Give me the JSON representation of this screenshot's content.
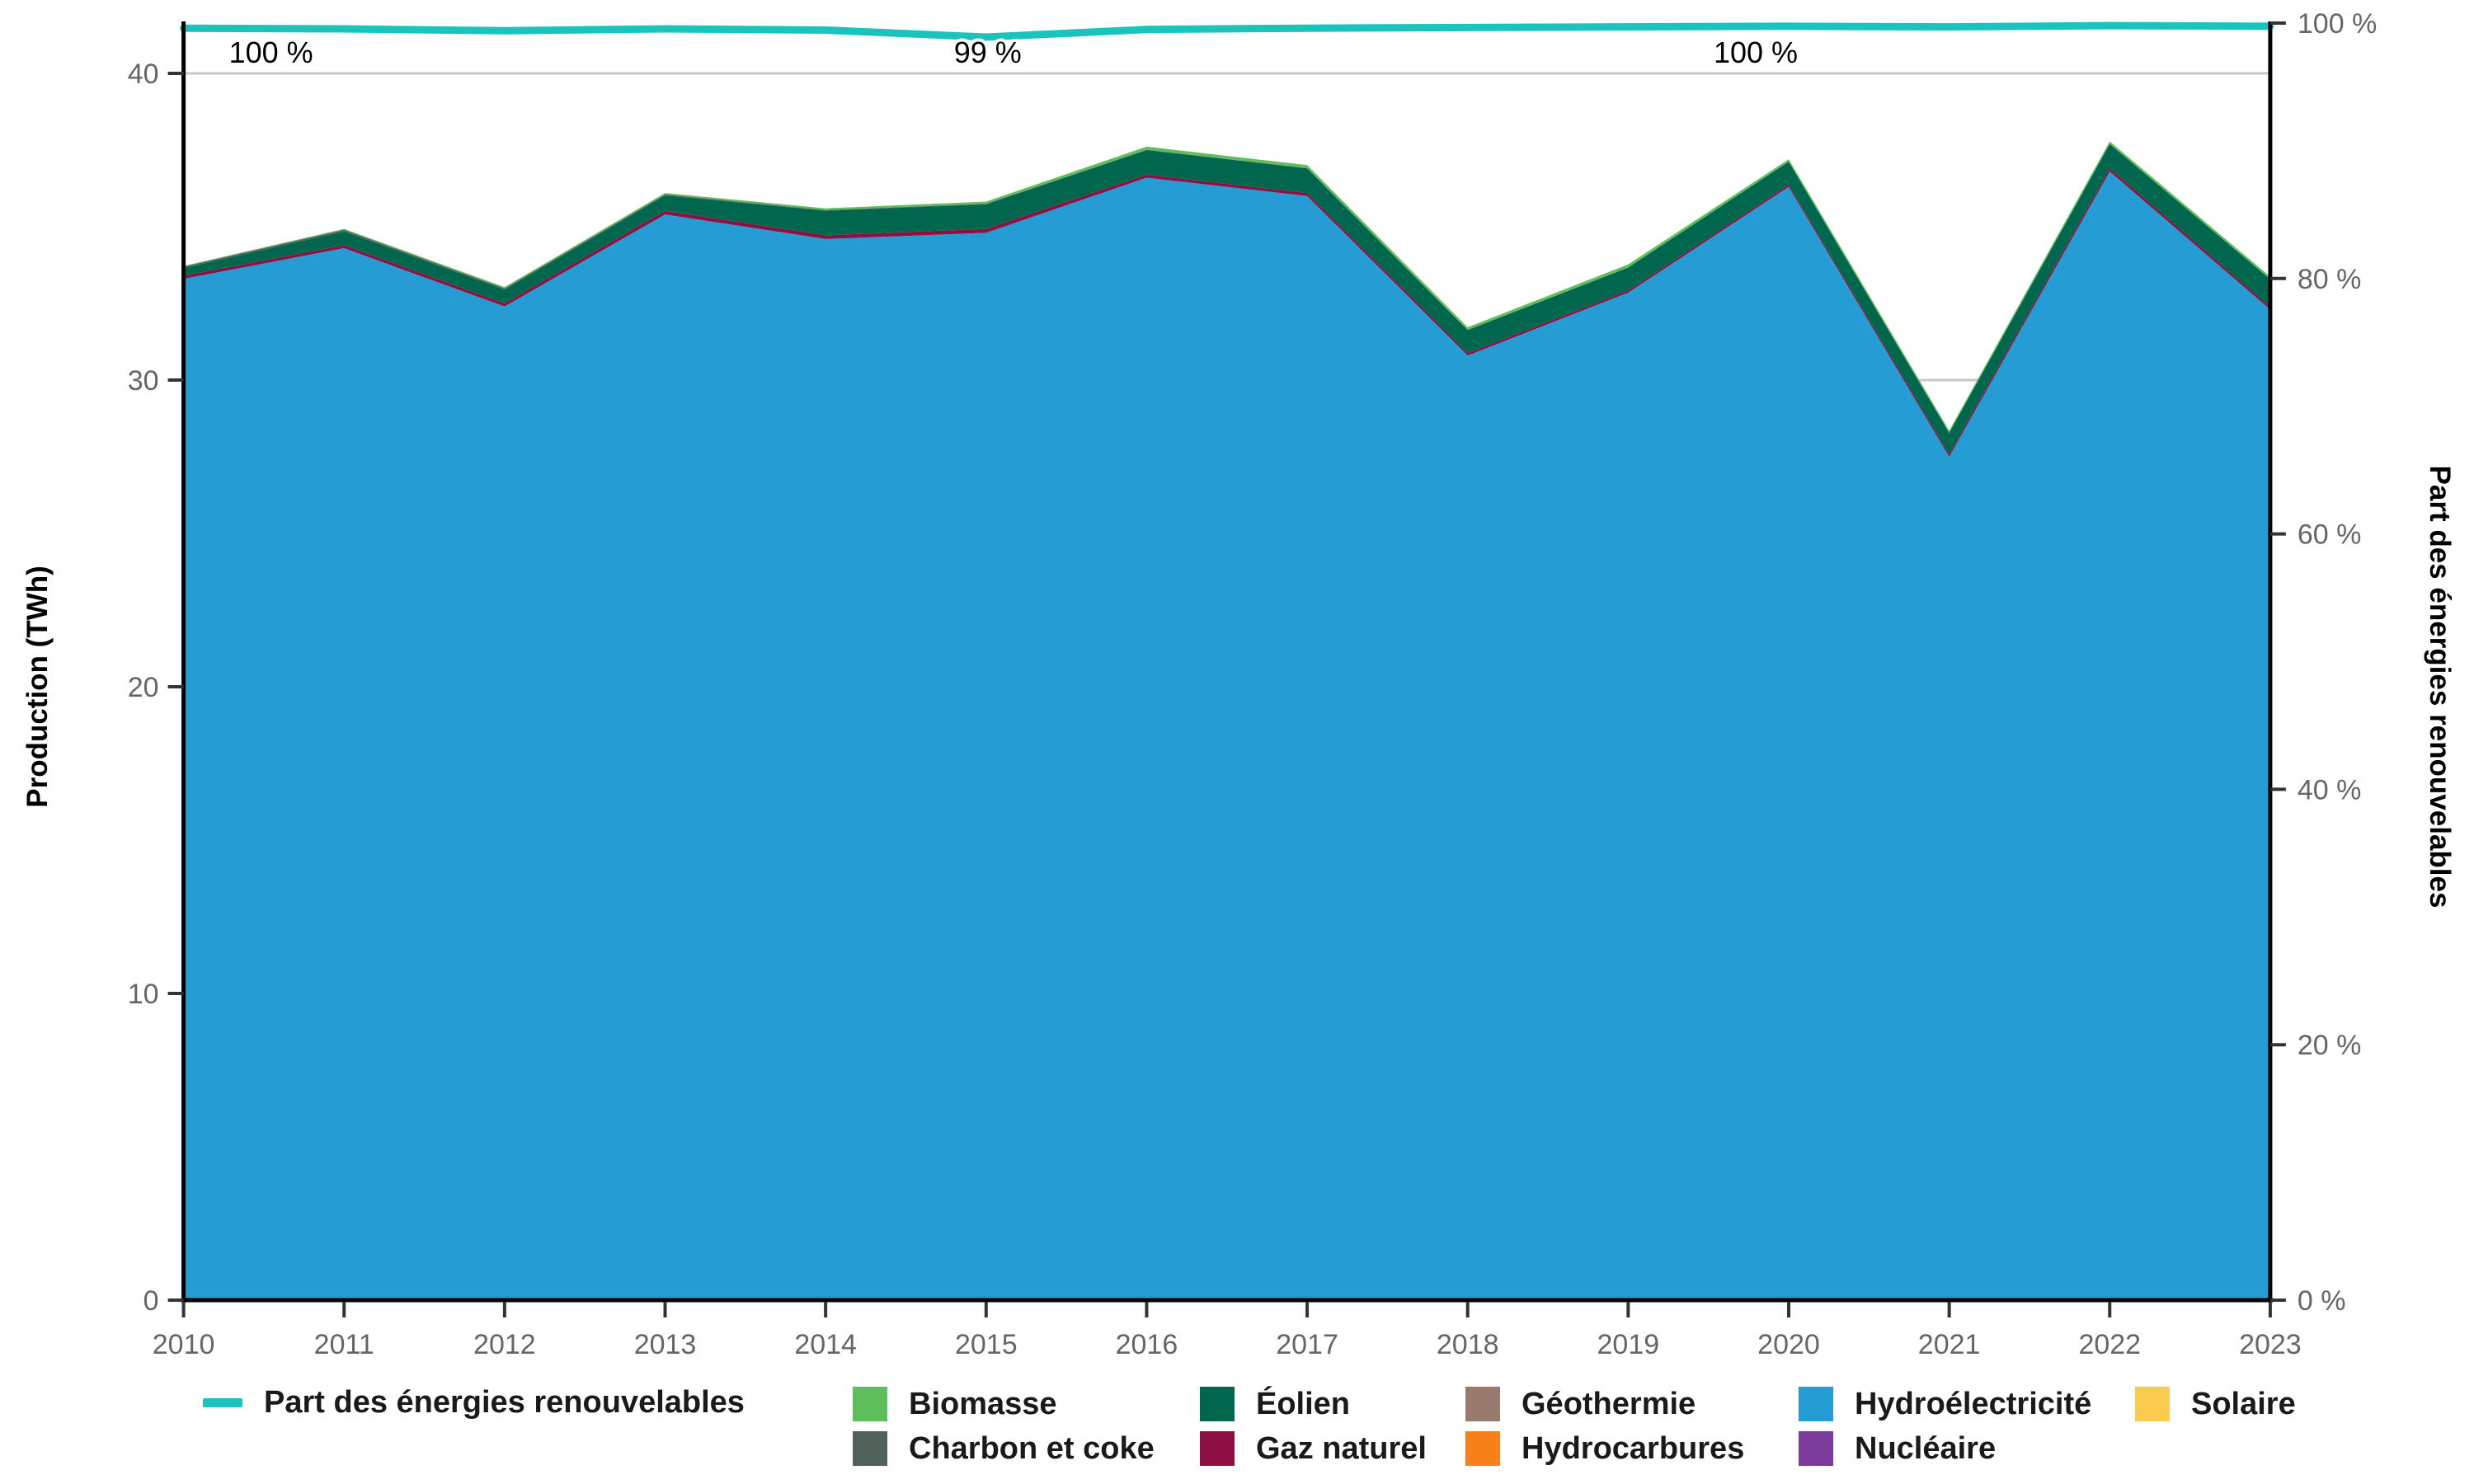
{
  "chart_data": {
    "type": "area",
    "title": "",
    "x": [
      2010,
      2011,
      2012,
      2013,
      2014,
      2015,
      2016,
      2017,
      2018,
      2019,
      2020,
      2021,
      2022,
      2023
    ],
    "x_tick_labels": [
      "2010",
      "2011",
      "2012",
      "2013",
      "2014",
      "2015",
      "2016",
      "2017",
      "2018",
      "2019",
      "2020",
      "2021",
      "2022",
      "2023"
    ],
    "stack_note": "series listed bottom-to-top of the stack, values in TWh",
    "series": [
      {
        "id": "solaire",
        "name": "Solaire",
        "color": "#F9CC4F",
        "values": [
          0,
          0,
          0,
          0,
          0,
          0,
          0,
          0,
          0,
          0,
          0,
          0,
          0,
          0
        ]
      },
      {
        "id": "nucleaire",
        "name": "Nucléaire",
        "color": "#7A3B9B",
        "values": [
          0,
          0,
          0,
          0,
          0,
          0,
          0,
          0,
          0,
          0,
          0,
          0,
          0,
          0
        ]
      },
      {
        "id": "hydro",
        "name": "Hydroélectricité",
        "color": "#259CD3",
        "values": [
          33.3,
          34.3,
          32.4,
          35.4,
          34.6,
          34.8,
          36.6,
          36.0,
          30.8,
          32.85,
          36.3,
          27.5,
          36.8,
          32.3
        ]
      },
      {
        "id": "hydrocarbures",
        "name": "Hydrocarbures",
        "color": "#F8811C",
        "values": [
          0,
          0,
          0,
          0,
          0,
          0,
          0,
          0,
          0,
          0,
          0,
          0,
          0,
          0
        ]
      },
      {
        "id": "geothermie",
        "name": "Géothermie",
        "color": "#9A7A6F",
        "values": [
          0,
          0,
          0,
          0,
          0,
          0,
          0,
          0,
          0,
          0,
          0,
          0,
          0,
          0
        ]
      },
      {
        "id": "gaz",
        "name": "Gaz naturel",
        "color": "#8E1043",
        "values": [
          0.1,
          0.1,
          0.1,
          0.12,
          0.12,
          0.13,
          0.1,
          0.1,
          0.08,
          0.07,
          0.07,
          0.08,
          0.1,
          0.09
        ]
      },
      {
        "id": "eolien",
        "name": "Éolien",
        "color": "#00664E",
        "values": [
          0.25,
          0.45,
          0.45,
          0.5,
          0.8,
          0.8,
          0.8,
          0.8,
          0.75,
          0.75,
          0.75,
          0.7,
          0.8,
          0.9
        ]
      },
      {
        "id": "charbon",
        "name": "Charbon et coke",
        "color": "#51625A",
        "values": [
          0.05,
          0.05,
          0.04,
          0.03,
          0.02,
          0.02,
          0.01,
          0.01,
          0.01,
          0,
          0,
          0,
          0,
          0
        ]
      },
      {
        "id": "biomasse",
        "name": "Biomasse",
        "color": "#5EBE5C",
        "values": [
          0.02,
          0.03,
          0.04,
          0.05,
          0.06,
          0.07,
          0.1,
          0.1,
          0.08,
          0.1,
          0.08,
          0.07,
          0.08,
          0.08
        ]
      }
    ],
    "line_series": {
      "id": "part-renouvelables",
      "name": "Part des énergies renouvelables",
      "color": "#1AC4BD",
      "unit": "%",
      "values": [
        99.6,
        99.55,
        99.4,
        99.55,
        99.45,
        98.9,
        99.5,
        99.6,
        99.65,
        99.7,
        99.75,
        99.7,
        99.8,
        99.75
      ]
    },
    "annotations": [
      {
        "year": 2010,
        "text": "100 %",
        "anchor": "start",
        "dx": 55
      },
      {
        "year": 2015,
        "text": "99 %",
        "anchor": "middle",
        "dx": 2
      },
      {
        "year": 2020,
        "text": "100 %",
        "anchor": "middle",
        "dx": -40
      }
    ],
    "left_axis": {
      "label": "Production (TWh)",
      "tick_values": [
        0,
        10,
        20,
        30,
        40
      ],
      "tick_labels": [
        "0",
        "10",
        "20",
        "30",
        "40"
      ],
      "range": [
        0,
        41.6
      ],
      "grid": true
    },
    "right_axis": {
      "label": "Part des énergies renouvelables",
      "tick_values": [
        0,
        20,
        40,
        60,
        80,
        100
      ],
      "tick_labels": [
        "0 %",
        "20 %",
        "40 %",
        "60 %",
        "80 %",
        "100 %"
      ],
      "range": [
        0,
        100
      ],
      "grid": false
    },
    "grid_color": "#C8C8C8",
    "axis_color": "#000000",
    "tick_color": "#333333",
    "tick_label_color": "#666666",
    "legend_position": "bottom"
  },
  "legend": {
    "row1": [
      {
        "id": "part-renouvelables",
        "label": "Part des énergies renouvelables",
        "color": "#1AC4BD",
        "swatch": "line"
      },
      {
        "id": "biomasse",
        "label": "Biomasse",
        "color": "#5EBE5C",
        "swatch": "square"
      },
      {
        "id": "eolien",
        "label": "Éolien",
        "color": "#00664E",
        "swatch": "square"
      },
      {
        "id": "geothermie",
        "label": "Géothermie",
        "color": "#9A7A6F",
        "swatch": "square"
      },
      {
        "id": "hydro",
        "label": "Hydroélectricité",
        "color": "#259CD3",
        "swatch": "square"
      },
      {
        "id": "solaire",
        "label": "Solaire",
        "color": "#F9CC4F",
        "swatch": "square"
      }
    ],
    "row2": [
      {
        "id": "charbon",
        "label": "Charbon et coke",
        "color": "#51625A",
        "swatch": "square"
      },
      {
        "id": "gaz",
        "label": "Gaz naturel",
        "color": "#8E1043",
        "swatch": "square"
      },
      {
        "id": "hydrocarbures",
        "label": "Hydrocarbures",
        "color": "#F8811C",
        "swatch": "square"
      },
      {
        "id": "nucleaire",
        "label": "Nucléaire",
        "color": "#7A3B9B",
        "swatch": "square"
      }
    ]
  }
}
